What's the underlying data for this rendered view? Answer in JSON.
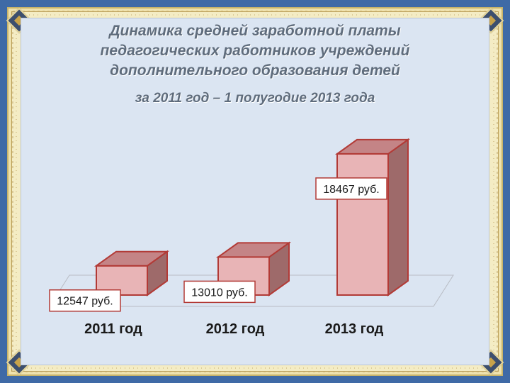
{
  "slide": {
    "title_lines": [
      "Динамика средней заработной платы",
      "педагогических работников учреждений",
      "дополнительного образования детей"
    ],
    "subtitle": "за 2011 год – 1 полугодие 2013 года"
  },
  "colors": {
    "background": "#3f6aa6",
    "frame": "#f4ecc4",
    "panel": "#dbe5f2",
    "bar_front": "#e8b4b6",
    "bar_side": "#9e6a6a",
    "bar_top": "#c48486",
    "bar_edge": "#b23a36",
    "title_text": "#5f6c7c"
  },
  "chart_data": {
    "type": "bar",
    "style": "3d",
    "title": "Динамика средней заработной платы педагогических работников учреждений дополнительного образования детей",
    "subtitle": "за 2011 год – 1 полугодие 2013 года",
    "categories": [
      "2011 год",
      "2012 год",
      "2013 год"
    ],
    "values": [
      12547,
      13010,
      18467
    ],
    "data_labels": [
      "12547 руб.",
      "13010 руб.",
      "18467 руб."
    ],
    "xlabel": "",
    "ylabel": "",
    "ylim": [
      11000,
      20000
    ],
    "grid": false,
    "legend": "none"
  }
}
